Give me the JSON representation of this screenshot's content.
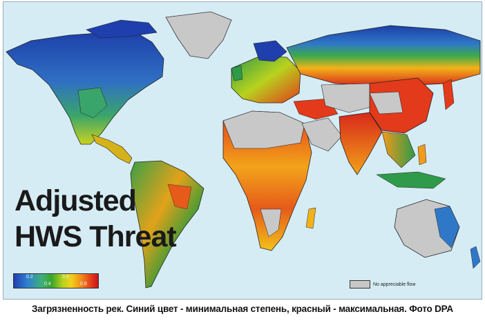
{
  "map": {
    "title_line1": "Adjusted",
    "title_line2": "HWS Threat",
    "legend": {
      "ticks_top": [
        "0.2",
        "0.6"
      ],
      "ticks_bottom": [
        "0.4",
        "0.8"
      ],
      "colors": [
        "#1f3fb0",
        "#3fb07a",
        "#3ca62a",
        "#f2d21a",
        "#f28a1a",
        "#c4161c"
      ]
    },
    "no_flow_label": "No appreciable flow",
    "no_flow_color": "#c8c8c8",
    "ocean_color": "#d6ecf5"
  },
  "caption": "Загрязненность рек. Синий цвет - минимальная степень, красный - максимальная. Фото DPA"
}
